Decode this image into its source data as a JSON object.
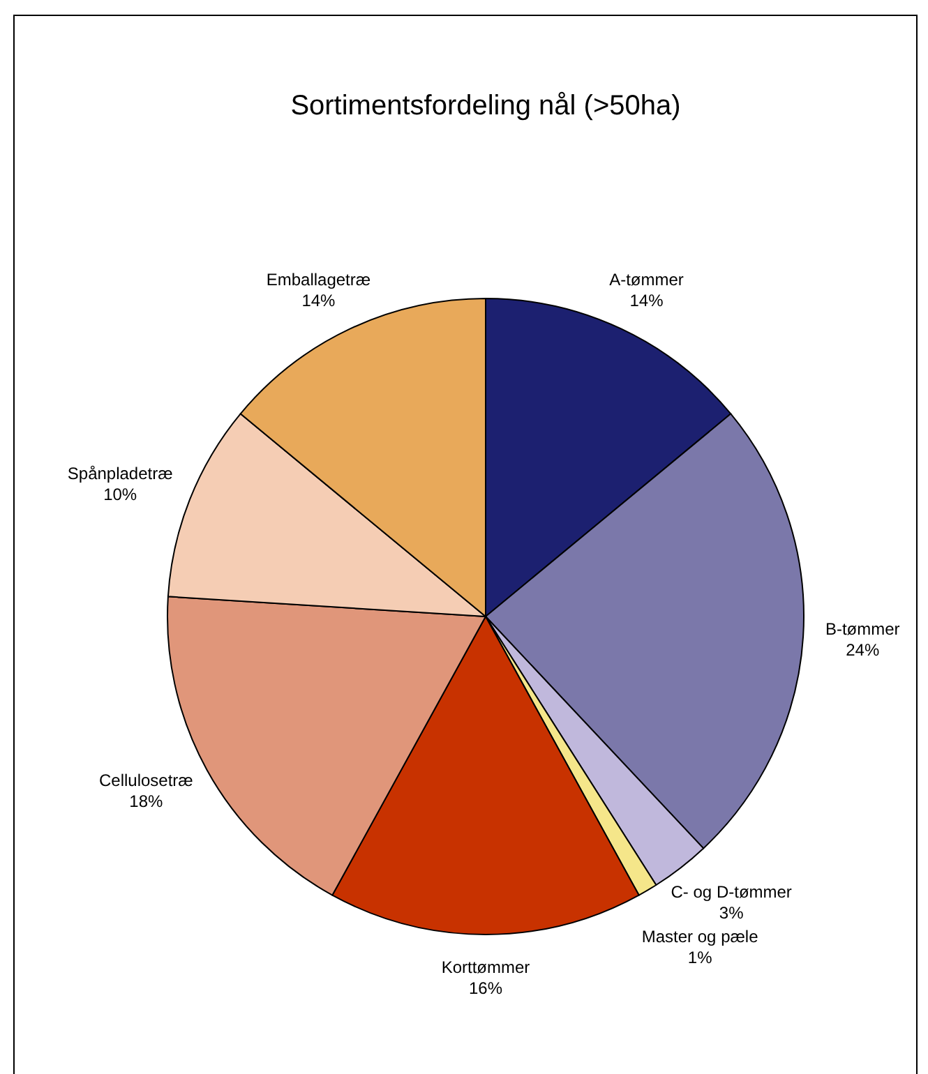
{
  "chart_data": {
    "type": "pie",
    "title": "Sortimentsfordeling nål (>50ha)",
    "categories": [
      "A-tømmer",
      "B-tømmer",
      "C- og D-tømmer",
      "Master og pæle",
      "Korttømmer",
      "Cellulosetræ",
      "Spånpladetræ",
      "Emballagetræ"
    ],
    "values": [
      14,
      24,
      3,
      1,
      16,
      18,
      10,
      14
    ],
    "colors": [
      "#1c2070",
      "#7b78aa",
      "#c0b8dc",
      "#f5e68a",
      "#c83200",
      "#e0967a",
      "#f5cdb4",
      "#e8a95a"
    ],
    "value_labels": [
      "14%",
      "24%",
      "3%",
      "1%",
      "16%",
      "18%",
      "10%",
      "14%"
    ]
  }
}
